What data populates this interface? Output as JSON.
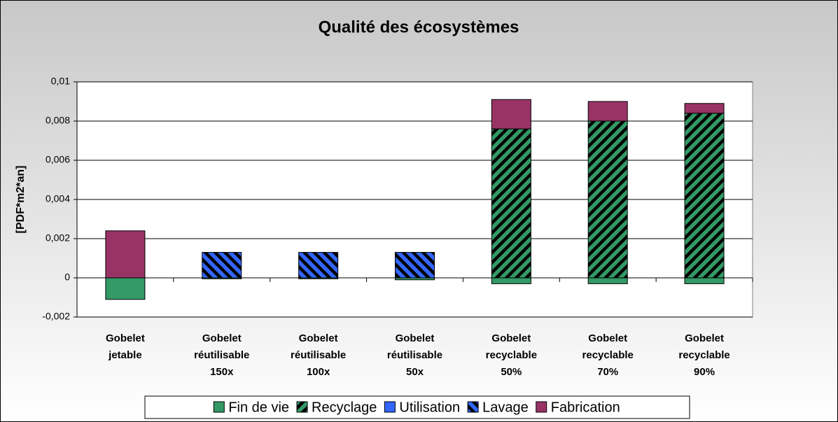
{
  "chart_data": {
    "type": "stacked_bar",
    "title": "Qualité des écosystèmes",
    "y_label": "[PDF*m2*an]",
    "categories": [
      [
        "Gobelet",
        "jetable"
      ],
      [
        "Gobelet",
        "réutilisable",
        "150x"
      ],
      [
        "Gobelet",
        "réutilisable",
        "100x"
      ],
      [
        "Gobelet",
        "réutilisable",
        "50x"
      ],
      [
        "Gobelet",
        "recyclable",
        "50%"
      ],
      [
        "Gobelet",
        "recyclable",
        "70%"
      ],
      [
        "Gobelet",
        "recyclable",
        "90%"
      ]
    ],
    "series": [
      {
        "name": "Fin de vie",
        "color": "#339966",
        "hatch": "none",
        "values": [
          -0.0011,
          -5e-05,
          -5e-05,
          -0.0001,
          -0.0003,
          -0.0003,
          -0.0003
        ]
      },
      {
        "name": "Recyclage",
        "color": "#339966",
        "hatch": "forward",
        "values": [
          0,
          0,
          0,
          0,
          0.0076,
          0.008,
          0.0084
        ]
      },
      {
        "name": "Utilisation",
        "color": "#3366ff",
        "hatch": "none",
        "values": [
          0,
          0,
          0,
          0,
          0,
          0,
          0
        ]
      },
      {
        "name": "Lavage",
        "color": "#3366ff",
        "hatch": "backward",
        "values": [
          0,
          0.0013,
          0.0013,
          0.0013,
          0,
          0,
          0
        ]
      },
      {
        "name": "Fabrication",
        "color": "#993366",
        "hatch": "none",
        "values": [
          0.0024,
          0,
          0,
          0,
          0.0015,
          0.001,
          0.0005
        ]
      }
    ],
    "ylim": [
      -0.002,
      0.01
    ],
    "yticks": [
      {
        "value": -0.002,
        "label": "-0,002"
      },
      0,
      {
        "value": 0.002,
        "label": "0,002"
      },
      {
        "value": 0.004,
        "label": "0,004"
      },
      {
        "value": 0.006,
        "label": "0,006"
      },
      {
        "value": 0.008,
        "label": "0,008"
      },
      {
        "value": 0.01,
        "label": "0,01"
      }
    ],
    "grid": true,
    "legend": "bottom"
  }
}
